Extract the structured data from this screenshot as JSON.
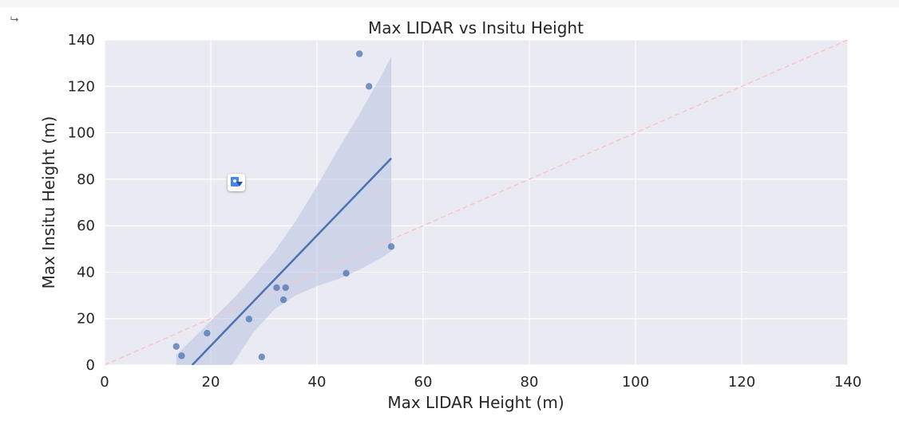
{
  "output_icon": "output-arrow-icon",
  "chart_data": {
    "type": "scatter",
    "title": "Max LIDAR vs Insitu Height",
    "xlabel": "Max LIDAR Height (m)",
    "ylabel": "Max Insitu Height (m)",
    "xlim": [
      0,
      140
    ],
    "ylim": [
      0,
      140
    ],
    "xticks": [
      0,
      20,
      40,
      60,
      80,
      100,
      120,
      140
    ],
    "yticks": [
      0,
      20,
      40,
      60,
      80,
      100,
      120,
      140
    ],
    "grid": true,
    "points": [
      {
        "x": 13.5,
        "y": 8.0
      },
      {
        "x": 14.5,
        "y": 4.0
      },
      {
        "x": 19.3,
        "y": 13.7
      },
      {
        "x": 27.2,
        "y": 19.8
      },
      {
        "x": 29.6,
        "y": 3.5
      },
      {
        "x": 32.4,
        "y": 33.3
      },
      {
        "x": 33.7,
        "y": 28.1
      },
      {
        "x": 34.1,
        "y": 33.3
      },
      {
        "x": 45.5,
        "y": 39.5
      },
      {
        "x": 48.0,
        "y": 134.0
      },
      {
        "x": 49.8,
        "y": 120.0
      },
      {
        "x": 54.0,
        "y": 51.0
      }
    ],
    "regression_line": {
      "x": [
        16.5,
        54.0
      ],
      "y": [
        0.0,
        89.0
      ]
    },
    "confidence_band": {
      "x": [
        13.5,
        16.0,
        20.0,
        24.0,
        28.0,
        32.0,
        36.0,
        40.0,
        44.0,
        48.0,
        52.0,
        54.0
      ],
      "upper": [
        4.5,
        10.0,
        19.0,
        28.0,
        38.0,
        49.0,
        62.0,
        77.0,
        93.0,
        108.0,
        124.0,
        133.0
      ],
      "lower": [
        0.0,
        0.0,
        0.0,
        0.0,
        14.0,
        24.0,
        30.0,
        34.0,
        37.0,
        41.0,
        46.0,
        49.0
      ]
    },
    "identity_line": {
      "x": [
        0,
        140
      ],
      "y": [
        0,
        140
      ]
    },
    "colors": {
      "background": "#eaeaf2",
      "grid": "#ffffff",
      "points": "#4c72b0",
      "regression": "#4c72b0",
      "band": "#b7c3e0",
      "identity": "#ffc0cb"
    }
  }
}
